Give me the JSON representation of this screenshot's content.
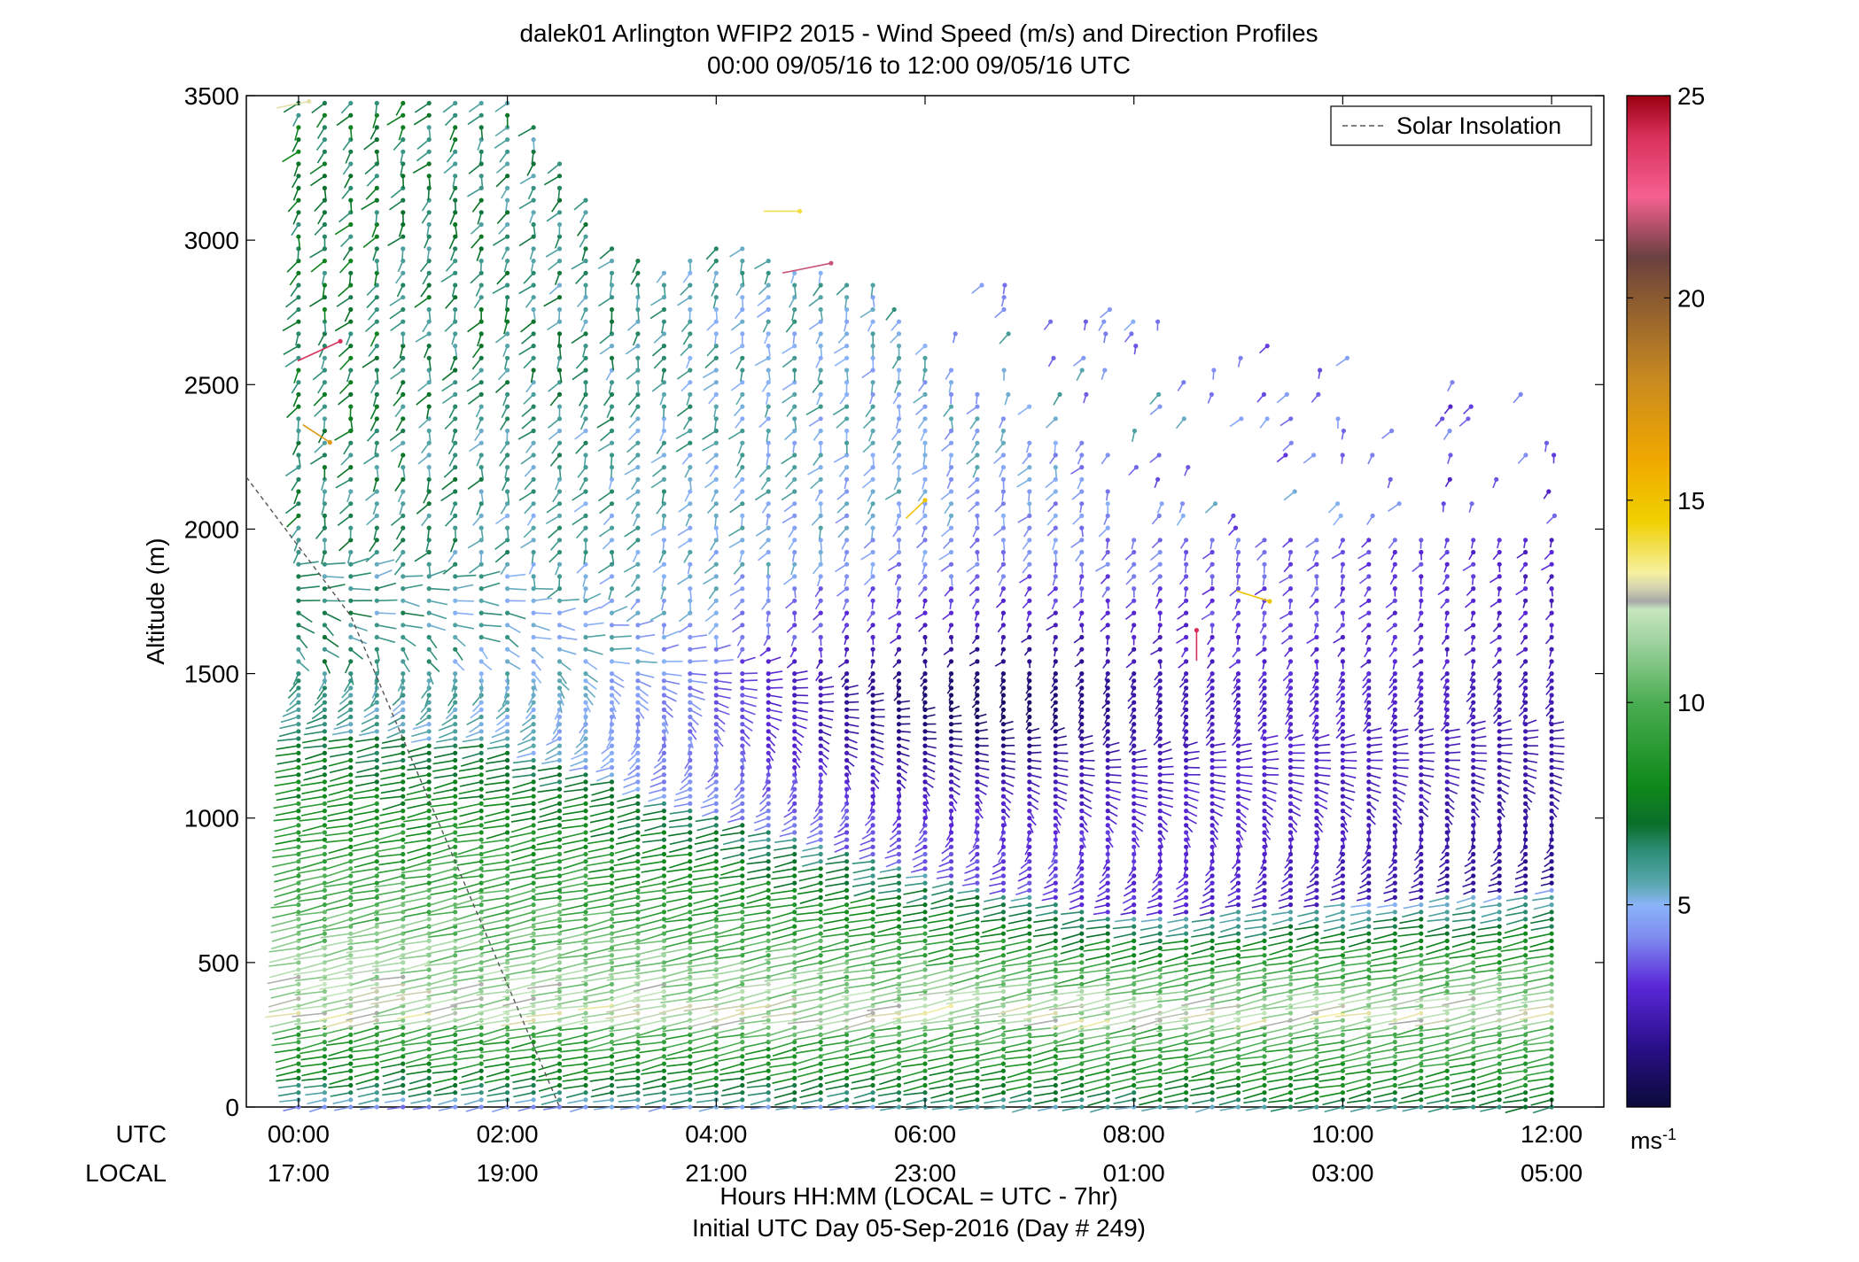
{
  "chart_data": {
    "type": "wind-barb-profile",
    "title": "dalek01 Arlington WFIP2 2015 - Wind Speed (m/s) and Direction Profiles",
    "subtitle": "00:00 09/05/16 to 12:00 09/05/16  UTC",
    "ylabel": "Altitude (m)",
    "xlabel": "Hours HH:MM  (LOCAL = UTC - 7hr)",
    "xlabel2": "Initial UTC Day 05-Sep-2016 (Day # 249)",
    "ylim": [
      0,
      3500
    ],
    "xlim_hours": [
      -0.5,
      12.5
    ],
    "y_ticks": [
      0,
      500,
      1000,
      1500,
      2000,
      2500,
      3000,
      3500
    ],
    "x_ticks": [
      {
        "hour": 0,
        "utc": "00:00",
        "local": "17:00"
      },
      {
        "hour": 2,
        "utc": "02:00",
        "local": "19:00"
      },
      {
        "hour": 4,
        "utc": "04:00",
        "local": "21:00"
      },
      {
        "hour": 6,
        "utc": "06:00",
        "local": "23:00"
      },
      {
        "hour": 8,
        "utc": "08:00",
        "local": "01:00"
      },
      {
        "hour": 10,
        "utc": "10:00",
        "local": "03:00"
      },
      {
        "hour": 12,
        "utc": "12:00",
        "local": "05:00"
      }
    ],
    "row_labels": {
      "utc": "UTC",
      "local": "LOCAL"
    },
    "legend": {
      "label": "Solar Insolation",
      "position": "top-right",
      "style": "dashed"
    },
    "colorbar": {
      "range": [
        0,
        25
      ],
      "ticks": [
        5,
        10,
        15,
        20,
        25
      ],
      "unit_base": "ms",
      "unit_exp": "-1",
      "stops": [
        {
          "v": 0,
          "c": "#0b0b3a"
        },
        {
          "v": 1.5,
          "c": "#2a0f8a"
        },
        {
          "v": 3,
          "c": "#5a28d8"
        },
        {
          "v": 4.2,
          "c": "#7f8cf0"
        },
        {
          "v": 5,
          "c": "#8ab4f8"
        },
        {
          "v": 5.5,
          "c": "#5ba8b0"
        },
        {
          "v": 6.3,
          "c": "#2f8f7a"
        },
        {
          "v": 7,
          "c": "#0a6f2a"
        },
        {
          "v": 8,
          "c": "#108a1a"
        },
        {
          "v": 10,
          "c": "#4aad52"
        },
        {
          "v": 11.5,
          "c": "#9fd39f"
        },
        {
          "v": 12.3,
          "c": "#c6e6bd"
        },
        {
          "v": 12.5,
          "c": "#a8a8a8"
        },
        {
          "v": 12.8,
          "c": "#d0d0b0"
        },
        {
          "v": 13.2,
          "c": "#f6f0a0"
        },
        {
          "v": 14.5,
          "c": "#f0d000"
        },
        {
          "v": 16,
          "c": "#f0a800"
        },
        {
          "v": 18,
          "c": "#c88a20"
        },
        {
          "v": 20,
          "c": "#8a5a30"
        },
        {
          "v": 21,
          "c": "#6a4040"
        },
        {
          "v": 22.5,
          "c": "#f56090"
        },
        {
          "v": 24,
          "c": "#d8305a"
        },
        {
          "v": 25,
          "c": "#9a0010"
        }
      ]
    },
    "sampling": {
      "dt_hours": 0.25,
      "dz_m": 25,
      "levels_above_1500_m": 50
    },
    "solar_insolation_line": [
      [
        -0.5,
        2180
      ],
      [
        0.5,
        1700
      ],
      [
        2.5,
        0
      ]
    ],
    "data_top_m": [
      [
        0.0,
        3480
      ],
      [
        0.5,
        3480
      ],
      [
        1.0,
        3480
      ],
      [
        1.5,
        3480
      ],
      [
        2.0,
        3480
      ],
      [
        2.5,
        3300
      ],
      [
        3.0,
        3000
      ],
      [
        3.5,
        2900
      ],
      [
        4.0,
        3000
      ],
      [
        4.5,
        2950
      ],
      [
        5.0,
        2900
      ],
      [
        5.5,
        2850
      ],
      [
        6.0,
        2650
      ],
      [
        6.5,
        2500
      ],
      [
        7.0,
        2300
      ],
      [
        7.5,
        2300
      ],
      [
        8.0,
        2000
      ],
      [
        9.0,
        2000
      ],
      [
        10.0,
        2000
      ],
      [
        11.0,
        2000
      ],
      [
        12.0,
        2000
      ]
    ],
    "scattered_top_m": [
      [
        7.0,
        2850
      ],
      [
        8.0,
        2750
      ],
      [
        9.0,
        2650
      ],
      [
        10.0,
        2600
      ],
      [
        11.0,
        2550
      ],
      [
        12.0,
        2500
      ]
    ],
    "speed_structure_ms": {
      "surface_layer": {
        "z_m": [
          0,
          300
        ],
        "hour_0": 4,
        "hour_12": 6.5
      },
      "low_level_jet_core": {
        "z_m": 350,
        "hour_0": 12,
        "hour_12": 12
      },
      "jet_top_m": [
        [
          0.0,
          1300
        ],
        [
          2.0,
          1250
        ],
        [
          4.0,
          1000
        ],
        [
          6.0,
          800
        ],
        [
          8.0,
          650
        ],
        [
          10.0,
          700
        ],
        [
          12.0,
          750
        ]
      ],
      "above_jet": {
        "hour_0": 6,
        "hour_12": 1.5
      },
      "calm_core": {
        "center_hour": 6.5,
        "center_z_m": 1400,
        "speed": 0.8
      },
      "aloft": {
        "hour_0": 7,
        "hour_12": 3
      }
    },
    "direction_structure_deg": {
      "low_level": 250,
      "above_jet_veer": 60,
      "aloft": 200
    },
    "highlight_barbs": [
      {
        "hour": 0.4,
        "z_m": 2650,
        "speed": 24,
        "dir_deg": 230
      },
      {
        "hour": 0.3,
        "z_m": 2300,
        "speed": 17,
        "dir_deg": 320
      },
      {
        "hour": 5.1,
        "z_m": 2920,
        "speed": 22,
        "dir_deg": 250
      },
      {
        "hour": 8.6,
        "z_m": 1650,
        "speed": 24,
        "dir_deg": 180
      },
      {
        "hour": 9.3,
        "z_m": 1750,
        "speed": 15,
        "dir_deg": 300
      },
      {
        "hour": 6.0,
        "z_m": 2100,
        "speed": 15,
        "dir_deg": 210
      },
      {
        "hour": 4.8,
        "z_m": 3100,
        "speed": 14,
        "dir_deg": 270
      },
      {
        "hour": 0.1,
        "z_m": 3480,
        "speed": 13,
        "dir_deg": 250
      }
    ]
  }
}
